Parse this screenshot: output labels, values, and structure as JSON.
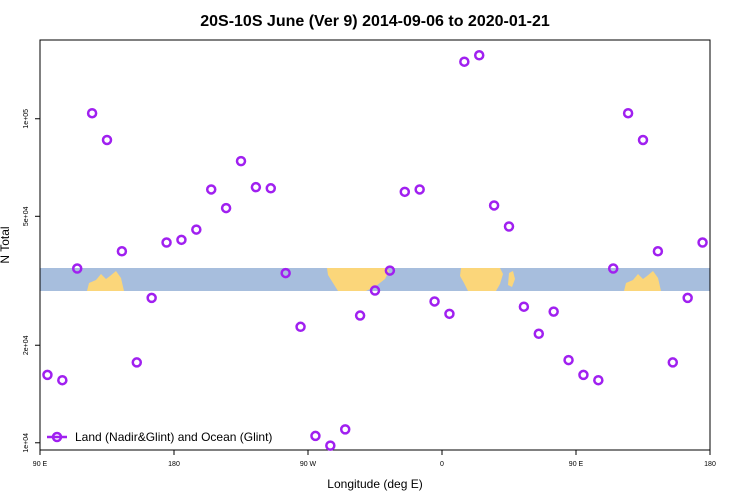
{
  "chart_data": {
    "type": "scatter",
    "title": "20S-10S June (Ver 9)   2014-09-06 to 2020-01-21",
    "xlabel": "Longitude (deg E)",
    "ylabel": "N Total",
    "x_ticks": [
      {
        "value": 90,
        "label": "90 E"
      },
      {
        "value": 180,
        "label": "180"
      },
      {
        "value": 270,
        "label": "90 W"
      },
      {
        "value": 360,
        "label": "0"
      },
      {
        "value": 450,
        "label": "90 E"
      },
      {
        "value": 540,
        "label": "180"
      }
    ],
    "y_ticks": [
      {
        "value": 10000,
        "label": "1e+04"
      },
      {
        "value": 20000,
        "label": "2e+04"
      },
      {
        "value": 50000,
        "label": "5e+04"
      },
      {
        "value": 100000,
        "label": "1e+05"
      }
    ],
    "xlim": [
      90,
      540
    ],
    "ylim_log": [
      9500,
      175000
    ],
    "legend": {
      "position": "bottom-left",
      "label": "Land (Nadir&Glint) and Ocean (Glint)",
      "color": "#a020f0"
    },
    "map_strip": {
      "lat_range": "20S-10S",
      "ocean_color": "#a7bedd",
      "land_color": "#fbd67a"
    },
    "series": [
      {
        "name": "Land (Nadir&Glint) and Ocean (Glint)",
        "color": "#a020f0",
        "x": [
          95,
          105,
          115,
          125,
          135,
          145,
          155,
          165,
          175,
          185,
          195,
          205,
          215,
          225,
          235,
          245,
          255,
          265,
          275,
          285,
          295,
          305,
          315,
          325,
          335,
          345,
          355,
          365,
          375,
          385,
          395,
          405,
          415,
          425,
          435,
          445,
          455,
          465,
          475,
          485,
          495,
          505,
          515,
          525,
          535
        ],
        "y": [
          16200,
          15600,
          34500,
          104000,
          86000,
          39000,
          17700,
          28000,
          41500,
          42300,
          45500,
          60500,
          53000,
          74000,
          61500,
          61000,
          33400,
          22800,
          10500,
          9800,
          11000,
          24700,
          29500,
          34000,
          59500,
          60500,
          27300,
          25000,
          150000,
          157000,
          54000,
          46500,
          26300,
          21700,
          25400,
          18000,
          16200,
          15600,
          34500,
          104000,
          86000,
          39000,
          17700,
          28000,
          41500
        ]
      }
    ]
  }
}
